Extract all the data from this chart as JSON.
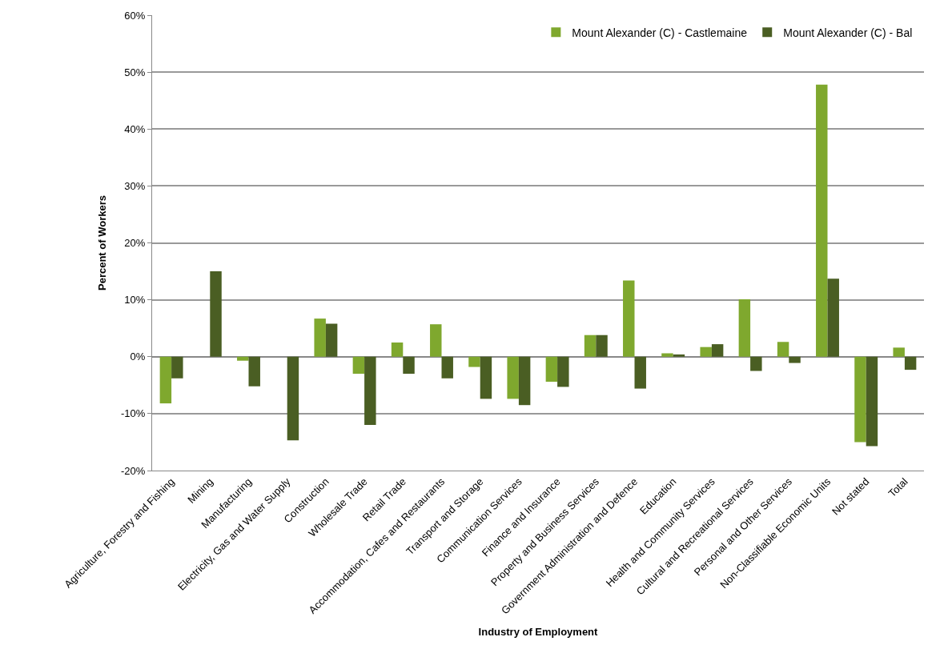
{
  "chart_data": {
    "type": "bar",
    "xlabel": "Industry of Employment",
    "ylabel": "Percent of Workers",
    "categories": [
      "Agriculture, Forestry and Fishing",
      "Mining",
      "Manufacturing",
      "Electricity, Gas and Water Supply",
      "Construction",
      "Wholesale Trade",
      "Retail Trade",
      "Accommodation, Cafes and Restaurants",
      "Transport and Storage",
      "Communication Services",
      "Finance and Insurance",
      "Property and Business Services",
      "Government Administration and Defence",
      "Education",
      "Health and Community Services",
      "Cultural and Recreational Services",
      "Personal and Other Services",
      "Non-Classifiable Economic Units",
      "Not stated",
      "Total"
    ],
    "series": [
      {
        "name": "Mount Alexander (C) - Castlemaine",
        "color": "#7fa82e",
        "values": [
          -8.2,
          null,
          -0.7,
          null,
          6.7,
          -3.0,
          2.5,
          5.7,
          -1.8,
          -7.4,
          -4.4,
          3.8,
          13.4,
          0.6,
          1.7,
          10.1,
          2.6,
          47.8,
          -15.0,
          1.6
        ]
      },
      {
        "name": "Mount Alexander (C) - Bal",
        "color": "#4a5e23",
        "values": [
          -3.8,
          15.0,
          -5.2,
          -14.7,
          5.8,
          -12.0,
          -3.0,
          -3.8,
          -7.4,
          -8.5,
          -5.3,
          3.8,
          -5.6,
          0.4,
          2.2,
          -2.5,
          -1.1,
          13.7,
          -15.7,
          -2.3
        ]
      }
    ],
    "ylim": [
      -20,
      60
    ],
    "yticks": [
      {
        "value": -20,
        "label": "-20%"
      },
      {
        "value": -10,
        "label": "-10%"
      },
      {
        "value": 0,
        "label": "0%"
      },
      {
        "value": 10,
        "label": "10%"
      },
      {
        "value": 20,
        "label": "20%"
      },
      {
        "value": 30,
        "label": "30%"
      },
      {
        "value": 40,
        "label": "40%"
      },
      {
        "value": 50,
        "label": "50%"
      },
      {
        "value": 60,
        "label": "60%"
      }
    ],
    "grid": "y",
    "legend": "top right"
  }
}
